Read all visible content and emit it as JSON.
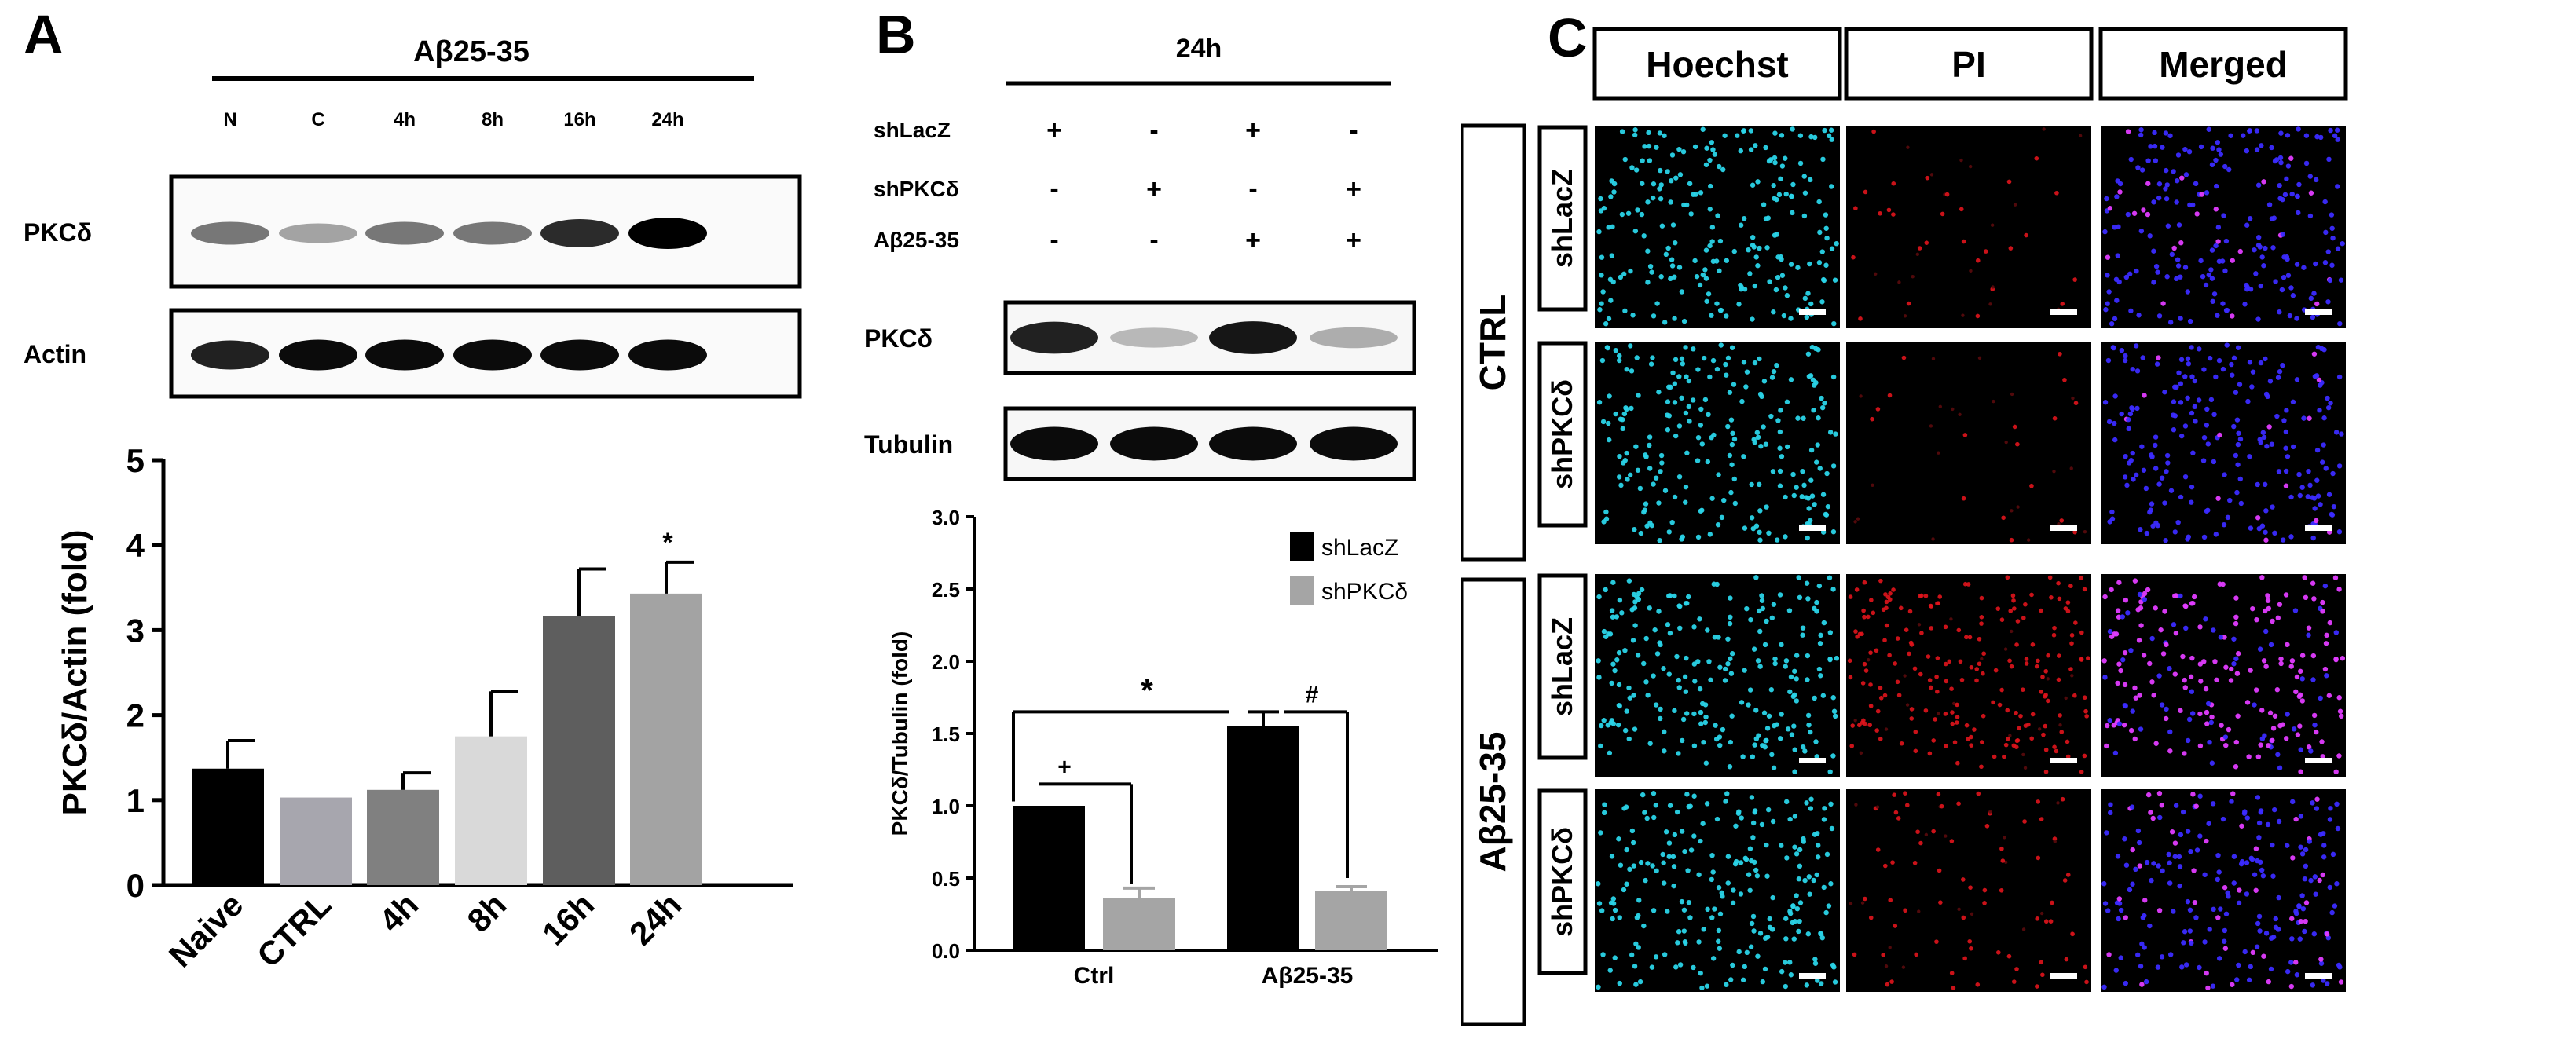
{
  "panel_a": {
    "letter": "A",
    "treatment": "Aβ25-35",
    "lanes": [
      "N",
      "C",
      "4h",
      "8h",
      "16h",
      "24h"
    ],
    "blots": [
      {
        "label": "PKCδ",
        "intensities": [
          0.45,
          0.25,
          0.45,
          0.45,
          0.8,
          1.0
        ]
      },
      {
        "label": "Actin",
        "intensities": [
          0.85,
          0.95,
          0.95,
          0.95,
          0.95,
          0.95
        ]
      }
    ],
    "significance": "*"
  },
  "panel_b": {
    "letter": "B",
    "time": "24h",
    "conditions": [
      {
        "label": "shLacZ",
        "signs": [
          "+",
          "-",
          "+",
          "-"
        ]
      },
      {
        "label": "shPKCδ",
        "signs": [
          "-",
          "+",
          "-",
          "+"
        ]
      },
      {
        "label": "Aβ25-35",
        "signs": [
          "-",
          "-",
          "+",
          "+"
        ]
      }
    ],
    "blots": [
      {
        "label": "PKCδ",
        "intensities": [
          0.85,
          0.15,
          0.9,
          0.2
        ]
      },
      {
        "label": "Tubulin",
        "intensities": [
          0.95,
          0.95,
          0.95,
          0.95
        ]
      }
    ],
    "significance": {
      "star": "*",
      "plus": "+",
      "hash": "#"
    }
  },
  "panel_c": {
    "letter": "C",
    "columns": [
      "Hoechst",
      "PI",
      "Merged"
    ],
    "groups": [
      {
        "label": "CTRL",
        "rows": [
          "shLacZ",
          "shPKCδ"
        ]
      },
      {
        "label": "Aβ25-35",
        "rows": [
          "shLacZ",
          "shPKCδ"
        ]
      }
    ],
    "pi_intensity": [
      0.15,
      0.05,
      0.9,
      0.35
    ],
    "colors": {
      "hoechst": "#2ad4e8",
      "pi": "#e0141c",
      "merged": "#3b2bff",
      "merged_pi": "#e23cff"
    }
  },
  "chart_data": [
    {
      "type": "bar",
      "categories": [
        "Naive",
        "CTRL",
        "4h",
        "8h",
        "16h",
        "24h"
      ],
      "values": [
        1.37,
        1.03,
        1.12,
        1.75,
        3.17,
        3.43
      ],
      "errors": [
        0.33,
        0,
        0.2,
        0.53,
        0.55,
        0.37
      ],
      "colors": [
        "#000000",
        "#a7a6ae",
        "#808080",
        "#d9d9d9",
        "#5e5e5e",
        "#a3a3a3"
      ],
      "ylabel": "PKCδ/Actin (fold)",
      "yticks": [
        "0",
        "1",
        "2",
        "3",
        "4",
        "5"
      ],
      "ylim": [
        0,
        5
      ],
      "annotations": [
        "*"
      ]
    },
    {
      "type": "bar",
      "categories": [
        "Ctrl",
        "Aβ25-35"
      ],
      "series": [
        {
          "name": "shLacZ",
          "values": [
            1.0,
            1.55
          ],
          "errors": [
            0,
            0.1
          ],
          "color": "#000000"
        },
        {
          "name": "shPKCδ",
          "values": [
            0.36,
            0.41
          ],
          "errors": [
            0.07,
            0.03
          ],
          "color": "#a5a5a5"
        }
      ],
      "ylabel": "PKCδ/Tubulin (fold)",
      "yticks": [
        "0.0",
        "0.5",
        "1.0",
        "1.5",
        "2.0",
        "2.5",
        "3.0"
      ],
      "ylim": [
        0,
        3
      ],
      "legend": "top-right",
      "annotations": [
        "*",
        "+",
        "#"
      ]
    }
  ]
}
